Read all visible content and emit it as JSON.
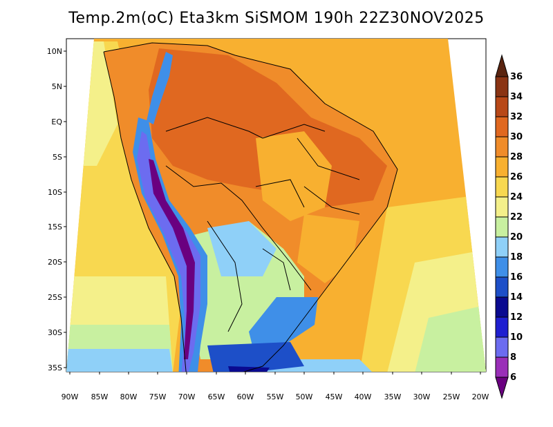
{
  "title": "Temp.2m(oC) Eta3km SiSMOM 190h 22Z30NOV2025",
  "map": {
    "lat_labels": [
      "10N",
      "5N",
      "EQ",
      "5S",
      "10S",
      "15S",
      "20S",
      "25S",
      "30S",
      "35S"
    ],
    "lon_labels": [
      "90W",
      "85W",
      "80W",
      "75W",
      "70W",
      "65W",
      "60W",
      "55W",
      "50W",
      "45W",
      "40W",
      "35W",
      "30W",
      "25W",
      "20W"
    ]
  },
  "colorbar": {
    "levels": [
      "6",
      "8",
      "10",
      "12",
      "14",
      "16",
      "18",
      "20",
      "22",
      "24",
      "26",
      "28",
      "30",
      "32",
      "34",
      "36"
    ],
    "colors": [
      "#6a0080",
      "#9a2fb8",
      "#6c6cf0",
      "#1f1fd0",
      "#0a0a90",
      "#1d4fc8",
      "#3f8fe8",
      "#8fd0f8",
      "#c8f0a0",
      "#f4f08a",
      "#f8d850",
      "#f8b030",
      "#f08c2a",
      "#e06820",
      "#b84818",
      "#8a3414",
      "#5a2410"
    ],
    "low_arrow_color": "#6a0080",
    "high_arrow_color": "#5a2410"
  }
}
